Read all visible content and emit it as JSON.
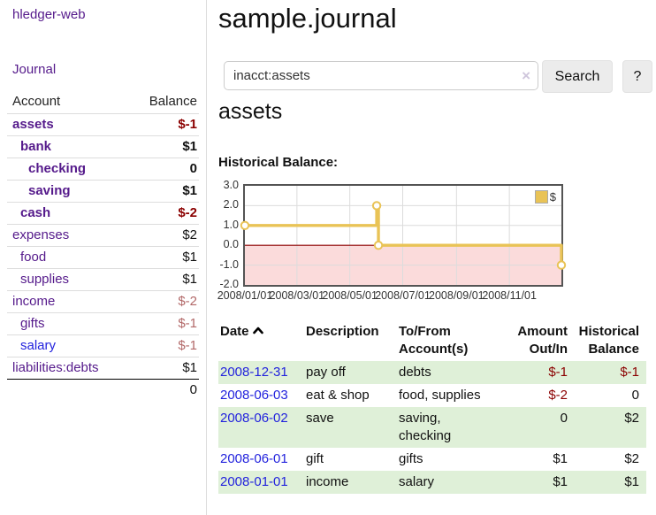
{
  "sidebar": {
    "app_title": "hledger-web",
    "nav": {
      "journal": "Journal"
    },
    "accounts_table": {
      "headers": {
        "account": "Account",
        "balance": "Balance"
      },
      "rows": [
        {
          "account": "assets",
          "balance": "$-1",
          "indent": 1,
          "bold": true,
          "negative": true
        },
        {
          "account": "bank",
          "balance": "$1",
          "indent": 2,
          "bold": true,
          "negative": false
        },
        {
          "account": "checking",
          "balance": "0",
          "indent": 3,
          "bold": true,
          "negative": false
        },
        {
          "account": "saving",
          "balance": "$1",
          "indent": 3,
          "bold": true,
          "negative": false
        },
        {
          "account": "cash",
          "balance": "$-2",
          "indent": 2,
          "bold": true,
          "negative": true
        },
        {
          "account": "expenses",
          "balance": "$2",
          "indent": 1,
          "bold": false,
          "negative": false
        },
        {
          "account": "food",
          "balance": "$1",
          "indent": 2,
          "bold": false,
          "negative": false
        },
        {
          "account": "supplies",
          "balance": "$1",
          "indent": 2,
          "bold": false,
          "negative": false
        },
        {
          "account": "income",
          "balance": "$-2",
          "indent": 1,
          "bold": false,
          "negative": true
        },
        {
          "account": "gifts",
          "balance": "$-1",
          "indent": 2,
          "bold": false,
          "negative": true
        },
        {
          "account": "salary",
          "balance": "$-1",
          "indent": 2,
          "bold": false,
          "negative": true,
          "link_style": "unvisited"
        },
        {
          "account": "liabilities:debts",
          "balance": "$1",
          "indent": 1,
          "bold": false,
          "negative": false
        }
      ],
      "total": "0"
    }
  },
  "header": {
    "title": "sample.journal"
  },
  "search": {
    "value": "inacct:assets",
    "clear_icon": "×",
    "search_button": "Search",
    "help_button": "?"
  },
  "account_page": {
    "heading": "assets",
    "section_label": "Historical Balance:"
  },
  "chart_data": {
    "type": "line",
    "style": "step-after",
    "title": "Historical Balance",
    "x_range": [
      "2008-01-01",
      "2008-12-31"
    ],
    "ylim": [
      -2,
      3
    ],
    "yticks": [
      3.0,
      2.0,
      1.0,
      0.0,
      -1.0,
      -2.0
    ],
    "xticks": [
      "2008/01/01",
      "2008/03/01",
      "2008/05/01",
      "2008/07/01",
      "2008/09/01",
      "2008/11/01"
    ],
    "series": [
      {
        "name": "$",
        "color": "#e9c356",
        "points": [
          [
            "2008-01-01",
            1
          ],
          [
            "2008-06-01",
            2
          ],
          [
            "2008-06-03",
            0
          ],
          [
            "2008-12-31",
            -1
          ]
        ]
      }
    ],
    "legend": {
      "label": "$",
      "position": "top-right"
    },
    "grid": true,
    "grid_color": "#dcdcdc",
    "zero_line_color": "#8b0000",
    "negative_region_fill": "#fbdbdb",
    "frame_color": "#545454"
  },
  "register": {
    "headers": [
      {
        "label": "Date",
        "sort_indicator": "up"
      },
      {
        "label": "Description"
      },
      {
        "label": "To/From Account(s)"
      },
      {
        "label": "Amount Out/In"
      },
      {
        "label": "Historical Balance"
      }
    ],
    "rows": [
      {
        "date": "2008-12-31",
        "description": "pay off",
        "accounts": "debts",
        "amount": "$-1",
        "balance": "$-1",
        "amount_negative": true,
        "balance_negative": true
      },
      {
        "date": "2008-06-03",
        "description": "eat & shop",
        "accounts": "food, supplies",
        "amount": "$-2",
        "balance": "0",
        "amount_negative": true,
        "balance_negative": false
      },
      {
        "date": "2008-06-02",
        "description": "save",
        "accounts": "saving, checking",
        "amount": "0",
        "balance": "$2",
        "amount_negative": false,
        "balance_negative": false
      },
      {
        "date": "2008-06-01",
        "description": "gift",
        "accounts": "gifts",
        "amount": "$1",
        "balance": "$2",
        "amount_negative": false,
        "balance_negative": false
      },
      {
        "date": "2008-01-01",
        "description": "income",
        "accounts": "salary",
        "amount": "$1",
        "balance": "$1",
        "amount_negative": false,
        "balance_negative": false
      }
    ]
  },
  "colors": {
    "link_visited_purple": "#551a8b",
    "link_blue": "#2323dd",
    "negative_dark_red": "#8b0000",
    "negative_soft_red": "#b26868",
    "row_stripe_green": "#dff0d8",
    "chart_gold": "#e9c356",
    "chart_negative_pink": "#fbdbdb"
  }
}
